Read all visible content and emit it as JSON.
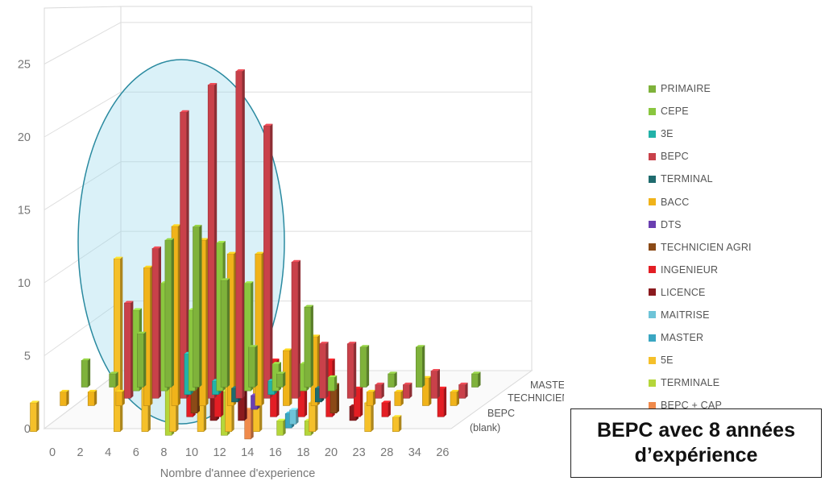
{
  "chart_data": {
    "type": "bar",
    "variant": "3d-grouped-columns",
    "xlabel": "Nombre d'annee d'experience",
    "ylim": [
      0,
      27
    ],
    "yticks": [
      0,
      5,
      10,
      15,
      20,
      25
    ],
    "categories": [
      "0",
      "2",
      "4",
      "6",
      "8",
      "10",
      "12",
      "14",
      "16",
      "18",
      "20",
      "23",
      "28",
      "34",
      "26"
    ],
    "depth_labels": [
      "MASTER",
      "TECHNICIEN AGRI",
      "BEPC",
      "(blank)"
    ],
    "highlight": "ellipse around experience 2-14",
    "series": [
      {
        "name": "PRIMAIRE",
        "color": "#7fb23b",
        "values": [
          2,
          1,
          4,
          11,
          12,
          8,
          3,
          1,
          6,
          0,
          3,
          1,
          3,
          0,
          1
        ]
      },
      {
        "name": "CEPE",
        "color": "#8ac63f",
        "values": [
          0,
          0,
          6,
          8,
          6,
          11,
          8,
          2,
          2,
          1,
          0,
          0,
          0,
          0,
          0
        ]
      },
      {
        "name": "3E",
        "color": "#22b2a8",
        "values": [
          0,
          0,
          0,
          0,
          3,
          1,
          0,
          1,
          0,
          0,
          0,
          0,
          0,
          0,
          0
        ]
      },
      {
        "name": "BEPC",
        "color": "#c9414a",
        "values": [
          0,
          0,
          7,
          11,
          21,
          23,
          24,
          20,
          10,
          4,
          4,
          1,
          1,
          2,
          1
        ]
      },
      {
        "name": "TERMINAL",
        "color": "#1f6b6e",
        "values": [
          0,
          0,
          0,
          0,
          0,
          0,
          1,
          0,
          0,
          1,
          0,
          0,
          0,
          0,
          0
        ]
      },
      {
        "name": "BACC",
        "color": "#f0b31a",
        "values": [
          1,
          1,
          1,
          10,
          13,
          12,
          11,
          11,
          4,
          5,
          0,
          1,
          1,
          2,
          1
        ]
      },
      {
        "name": "DTS",
        "color": "#6a3fb0",
        "values": [
          0,
          0,
          0,
          0,
          0,
          0,
          0,
          1,
          0,
          0,
          0,
          0,
          0,
          0,
          0
        ]
      },
      {
        "name": "TECHNICIEN AGRI",
        "color": "#8b4a17",
        "values": [
          0,
          0,
          0,
          0,
          0,
          3,
          0,
          0,
          0,
          0,
          2,
          0,
          0,
          0,
          0
        ]
      },
      {
        "name": "INGENIEUR",
        "color": "#e31e24",
        "values": [
          0,
          0,
          0,
          0,
          0,
          2,
          3,
          0,
          4,
          3,
          4,
          2,
          1,
          0,
          2
        ]
      },
      {
        "name": "LICENCE",
        "color": "#8b1a1e",
        "values": [
          0,
          0,
          0,
          0,
          0,
          0,
          2,
          3,
          0,
          0,
          0,
          1,
          0,
          0,
          0
        ]
      },
      {
        "name": "MAITRISE",
        "color": "#6ec4d8",
        "values": [
          0,
          0,
          0,
          0,
          0,
          0,
          0,
          0,
          0,
          1,
          0,
          0,
          0,
          0,
          0
        ]
      },
      {
        "name": "MASTER",
        "color": "#3aa6c2",
        "values": [
          0,
          0,
          0,
          0,
          0,
          0,
          0,
          0,
          0,
          1,
          0,
          0,
          0,
          0,
          0
        ]
      },
      {
        "name": "5E",
        "color": "#f5c02a",
        "values": [
          2,
          0,
          0,
          12,
          4,
          6,
          4,
          4,
          5,
          0,
          2,
          0,
          2,
          1,
          0
        ]
      },
      {
        "name": "TERMINALE",
        "color": "#b5d63a",
        "values": [
          0,
          0,
          0,
          0,
          0,
          5,
          0,
          3,
          0,
          1,
          1,
          0,
          0,
          0,
          0
        ]
      },
      {
        "name": "BEPC + CAP",
        "color": "#f08a4b",
        "values": [
          0,
          0,
          0,
          0,
          0,
          0,
          0,
          0,
          2,
          0,
          0,
          0,
          0,
          0,
          0
        ]
      }
    ]
  },
  "callout": {
    "line1": "BEPC avec 8 années",
    "line2": "d’expérience"
  }
}
